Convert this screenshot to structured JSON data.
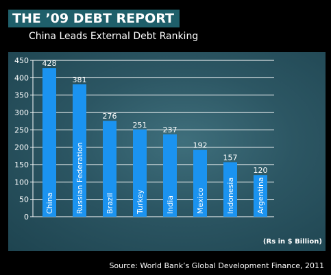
{
  "header": {
    "title": "THE ’09 DEBT REPORT",
    "subtitle": "China Leads External Debt Ranking"
  },
  "footer": {
    "source": "Source: World Bank’s Global Development Finance, 2011"
  },
  "colors": {
    "bar": "#1b93f0",
    "grid": "#ffffff",
    "title_bg": "#1f5f6a"
  },
  "chart_data": {
    "type": "bar",
    "orientation": "vertical",
    "title": "China Leads External Debt Ranking",
    "unit_label": "(Rs in $ Billion)",
    "categories": [
      "China",
      "Russian Federation",
      "Brazil",
      "Turkey",
      "India",
      "Mexico",
      "Indonesia",
      "Argentina"
    ],
    "values": [
      428,
      381,
      276,
      251,
      237,
      192,
      157,
      120
    ],
    "ylim": [
      0,
      450
    ],
    "yticks": [
      0,
      50,
      100,
      150,
      200,
      250,
      300,
      350,
      400,
      450
    ],
    "grid": true,
    "data_labels": true,
    "category_labels_inside_bars": true
  }
}
